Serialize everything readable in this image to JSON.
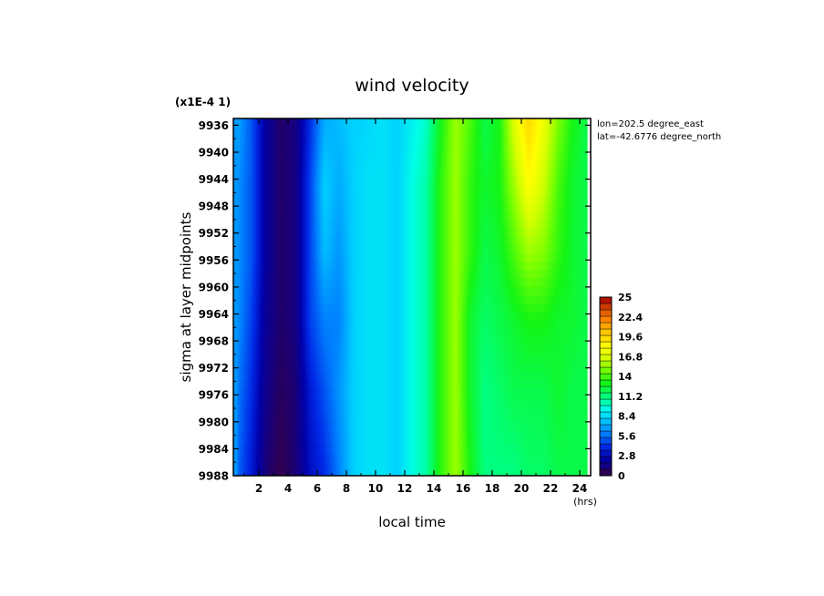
{
  "chart_data": {
    "type": "heatmap",
    "title": "wind velocity",
    "scale_note": "(x1E-4 1)",
    "xlabel": "local time",
    "x_unit": "(hrs)",
    "ylabel": "sigma at layer midpoints",
    "annotation_lines": [
      "lon=202.5 degree_east",
      "lat=-42.6776 degree_north"
    ],
    "x_ticks": [
      "2",
      "4",
      "6",
      "8",
      "10",
      "12",
      "14",
      "16",
      "18",
      "20",
      "22",
      "24"
    ],
    "y_ticks": [
      "9936",
      "9940",
      "9944",
      "9948",
      "9952",
      "9956",
      "9960",
      "9964",
      "9968",
      "9972",
      "9976",
      "9980",
      "9984",
      "9988"
    ],
    "xlim": [
      0.25,
      24.75
    ],
    "ylim": [
      9935,
      9988
    ],
    "colorbar": {
      "min": 0,
      "max": 25,
      "ticks": [
        "25",
        "22.4",
        "19.6",
        "16.8",
        "14",
        "11.2",
        "8.4",
        "5.6",
        "2.8",
        "0"
      ]
    },
    "x": [
      0.5,
      1.5,
      2.5,
      3.5,
      4.5,
      5.5,
      6.5,
      7.5,
      8.5,
      9.5,
      10.5,
      11.5,
      12.5,
      13.5,
      14.5,
      15.5,
      16.5,
      17.5,
      18.5,
      19.5,
      20.5,
      21.5,
      22.5,
      23.5,
      24.5
    ],
    "y": [
      9935,
      9945,
      9955,
      9965,
      9975,
      9988
    ],
    "z": [
      [
        7.0,
        5.0,
        2.0,
        0.8,
        1.2,
        4.0,
        7.0,
        7.5,
        8.0,
        8.2,
        8.5,
        8.0,
        9.0,
        10.0,
        13.0,
        15.5,
        14.0,
        12.0,
        13.0,
        17.0,
        19.5,
        17.5,
        15.0,
        13.0,
        12.0
      ],
      [
        6.5,
        5.0,
        2.0,
        0.8,
        1.2,
        4.5,
        8.0,
        7.0,
        8.0,
        8.5,
        8.5,
        8.0,
        9.5,
        10.5,
        13.5,
        15.5,
        13.5,
        12.5,
        13.0,
        15.5,
        18.0,
        16.5,
        14.0,
        12.5,
        12.0
      ],
      [
        6.5,
        5.0,
        2.0,
        0.8,
        1.2,
        4.5,
        7.5,
        6.5,
        8.0,
        8.5,
        8.5,
        8.0,
        9.5,
        10.5,
        13.5,
        15.5,
        13.5,
        12.0,
        12.5,
        14.0,
        15.5,
        15.0,
        13.5,
        12.5,
        12.0
      ],
      [
        6.5,
        4.5,
        1.8,
        0.8,
        1.2,
        4.5,
        6.0,
        6.0,
        8.0,
        8.5,
        8.5,
        8.0,
        9.5,
        10.5,
        13.5,
        15.5,
        12.5,
        11.5,
        12.0,
        12.5,
        13.0,
        13.0,
        12.5,
        12.5,
        12.0
      ],
      [
        6.0,
        4.0,
        1.5,
        0.6,
        1.0,
        3.5,
        5.0,
        6.5,
        8.0,
        8.5,
        8.5,
        8.0,
        9.5,
        10.5,
        13.5,
        15.5,
        12.5,
        11.0,
        11.5,
        12.0,
        12.0,
        12.0,
        12.5,
        12.0,
        12.0
      ],
      [
        5.5,
        3.5,
        1.0,
        0.3,
        1.0,
        3.0,
        4.0,
        6.0,
        8.0,
        8.5,
        8.5,
        8.0,
        9.5,
        10.5,
        13.5,
        15.5,
        13.0,
        11.0,
        11.0,
        11.0,
        11.5,
        11.5,
        12.0,
        12.0,
        12.0
      ]
    ]
  }
}
